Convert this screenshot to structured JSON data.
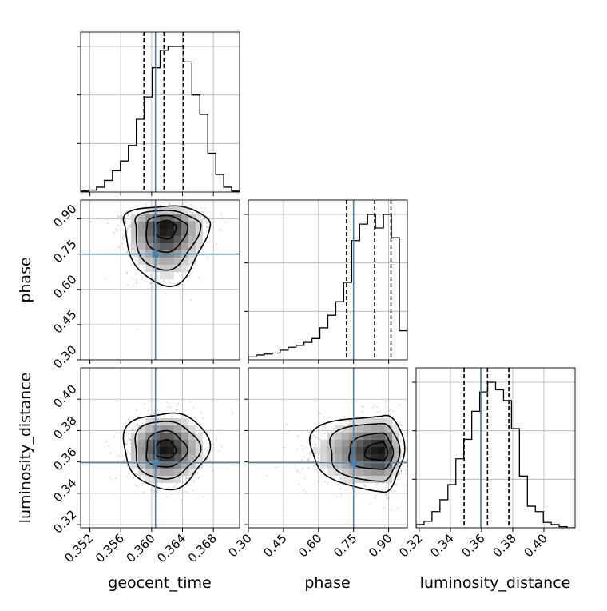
{
  "chart_data": {
    "type": "corner",
    "parameters": [
      "geocent_time",
      "phase",
      "luminosity_distance"
    ],
    "axis_labels": {
      "x": [
        "geocent_time",
        "phase",
        "luminosity_distance"
      ],
      "y": [
        "phase",
        "luminosity_distance"
      ]
    },
    "truths": {
      "geocent_time": 0.3605,
      "phase": 0.75,
      "luminosity_distance": 0.3595
    },
    "ranges": {
      "geocent_time": [
        0.3508,
        0.3714
      ],
      "phase": [
        0.3,
        0.98
      ],
      "luminosity_distance": [
        0.318,
        0.42
      ]
    },
    "ticks": {
      "geocent_time": [
        "0.352",
        "0.356",
        "0.360",
        "0.364",
        "0.368"
      ],
      "phase": [
        "0.30",
        "0.45",
        "0.60",
        "0.75",
        "0.90"
      ],
      "luminosity_distance": [
        "0.32",
        "0.34",
        "0.36",
        "0.38",
        "0.40"
      ]
    },
    "quantiles": {
      "geocent_time": [
        0.359,
        0.3616,
        0.3641
      ],
      "phase": [
        0.72,
        0.84,
        0.91
      ],
      "luminosity_distance": [
        0.3488,
        0.3638,
        0.3775
      ]
    },
    "marginals": {
      "geocent_time": {
        "edges_start": 0.3508,
        "bin_width": 0.00103,
        "counts": [
          1,
          2,
          5,
          12,
          22,
          32,
          48,
          75,
          98,
          128,
          146,
          150,
          150,
          134,
          100,
          80,
          40,
          18,
          5,
          1
        ]
      },
      "phase": {
        "edges_start": 0.3,
        "bin_width": 0.034,
        "counts": [
          3,
          5,
          6,
          7,
          10,
          13,
          15,
          18,
          22,
          33,
          46,
          60,
          80,
          123,
          140,
          150,
          136,
          150,
          126,
          30
        ]
      },
      "luminosity_distance": {
        "edges_start": 0.318,
        "bin_width": 0.0051,
        "counts": [
          3,
          6,
          15,
          26,
          40,
          64,
          82,
          108,
          126,
          135,
          128,
          118,
          92,
          48,
          20,
          15,
          5,
          3,
          1,
          0
        ]
      }
    },
    "centers": {
      "phase_vs_geocent_time": {
        "x": 0.3618,
        "y": 0.87
      },
      "luminosity_distance_vs_geocent_time": {
        "x": 0.3618,
        "y": 0.368
      },
      "luminosity_distance_vs_phase": {
        "x": 0.872,
        "y": 0.3665
      }
    },
    "grid": true,
    "colors": {
      "truth": "#4682b4",
      "hist": "#000000",
      "scatter": "#9a9a9a"
    }
  }
}
